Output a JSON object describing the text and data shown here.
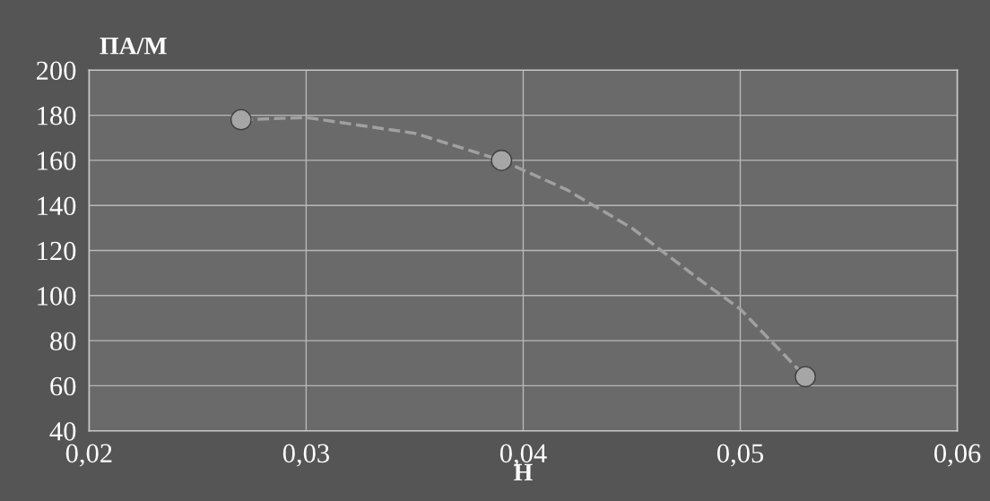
{
  "chart_data": {
    "type": "scatter",
    "xlabel": "Н",
    "ylabel": "ПА/М",
    "series": [
      {
        "color": "#a6a6a6",
        "x": [
          0.027,
          0.039,
          0.053
        ],
        "values": [
          178,
          160,
          64
        ],
        "marker": "circle"
      },
      {
        "type": "line",
        "color": "#a0a0a0",
        "line_style": "dashed",
        "marker": "none",
        "x": [
          0.027,
          0.03,
          0.035,
          0.039,
          0.042,
          0.045,
          0.048,
          0.05,
          0.053
        ],
        "values": [
          178,
          179,
          172,
          160,
          147,
          130,
          108,
          94,
          64
        ]
      }
    ],
    "xlim": [
      0.02,
      0.06
    ],
    "ylim": [
      40,
      200
    ],
    "xticks": [
      {
        "value": 0.02,
        "label": "0,02"
      },
      {
        "value": 0.03,
        "label": "0,03"
      },
      {
        "value": 0.04,
        "label": "0,04"
      },
      {
        "value": 0.05,
        "label": "0,05"
      },
      {
        "value": 0.06,
        "label": "0,06"
      }
    ],
    "yticks": [
      40,
      60,
      80,
      100,
      120,
      140,
      160,
      180,
      200
    ],
    "grid": true,
    "legend": false
  }
}
